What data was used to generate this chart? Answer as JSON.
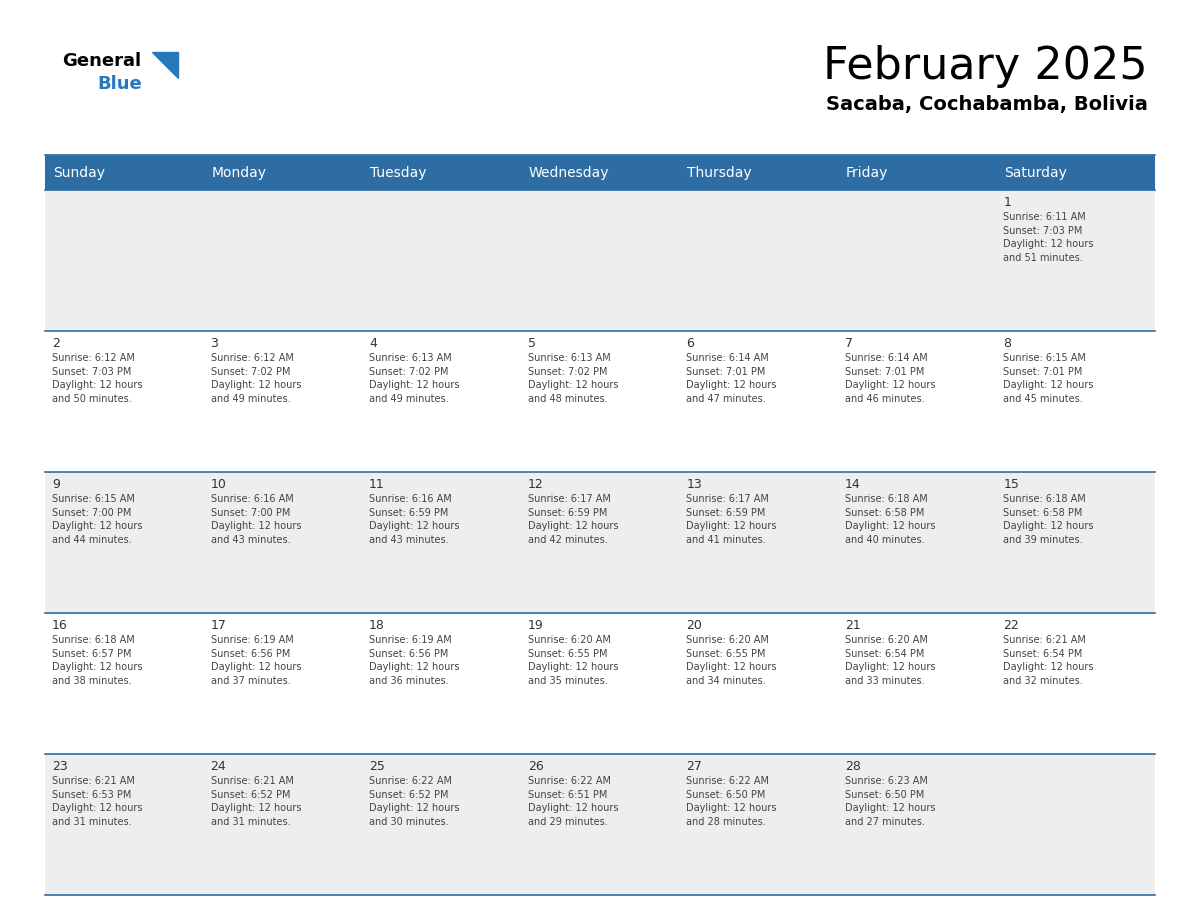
{
  "title": "February 2025",
  "subtitle": "Sacaba, Cochabamba, Bolivia",
  "header_bg_color": "#2E6DA4",
  "header_text_color": "#FFFFFF",
  "cell_bg_light": "#EEEEEE",
  "cell_bg_white": "#FFFFFF",
  "cell_text_color": "#444444",
  "day_number_color": "#333333",
  "border_color": "#2E6DA4",
  "days_of_week": [
    "Sunday",
    "Monday",
    "Tuesday",
    "Wednesday",
    "Thursday",
    "Friday",
    "Saturday"
  ],
  "calendar_data": [
    [
      null,
      null,
      null,
      null,
      null,
      null,
      {
        "day": "1",
        "sunrise": "6:11 AM",
        "sunset": "7:03 PM",
        "daylight": "12 hours\nand 51 minutes."
      }
    ],
    [
      {
        "day": "2",
        "sunrise": "6:12 AM",
        "sunset": "7:03 PM",
        "daylight": "12 hours\nand 50 minutes."
      },
      {
        "day": "3",
        "sunrise": "6:12 AM",
        "sunset": "7:02 PM",
        "daylight": "12 hours\nand 49 minutes."
      },
      {
        "day": "4",
        "sunrise": "6:13 AM",
        "sunset": "7:02 PM",
        "daylight": "12 hours\nand 49 minutes."
      },
      {
        "day": "5",
        "sunrise": "6:13 AM",
        "sunset": "7:02 PM",
        "daylight": "12 hours\nand 48 minutes."
      },
      {
        "day": "6",
        "sunrise": "6:14 AM",
        "sunset": "7:01 PM",
        "daylight": "12 hours\nand 47 minutes."
      },
      {
        "day": "7",
        "sunrise": "6:14 AM",
        "sunset": "7:01 PM",
        "daylight": "12 hours\nand 46 minutes."
      },
      {
        "day": "8",
        "sunrise": "6:15 AM",
        "sunset": "7:01 PM",
        "daylight": "12 hours\nand 45 minutes."
      }
    ],
    [
      {
        "day": "9",
        "sunrise": "6:15 AM",
        "sunset": "7:00 PM",
        "daylight": "12 hours\nand 44 minutes."
      },
      {
        "day": "10",
        "sunrise": "6:16 AM",
        "sunset": "7:00 PM",
        "daylight": "12 hours\nand 43 minutes."
      },
      {
        "day": "11",
        "sunrise": "6:16 AM",
        "sunset": "6:59 PM",
        "daylight": "12 hours\nand 43 minutes."
      },
      {
        "day": "12",
        "sunrise": "6:17 AM",
        "sunset": "6:59 PM",
        "daylight": "12 hours\nand 42 minutes."
      },
      {
        "day": "13",
        "sunrise": "6:17 AM",
        "sunset": "6:59 PM",
        "daylight": "12 hours\nand 41 minutes."
      },
      {
        "day": "14",
        "sunrise": "6:18 AM",
        "sunset": "6:58 PM",
        "daylight": "12 hours\nand 40 minutes."
      },
      {
        "day": "15",
        "sunrise": "6:18 AM",
        "sunset": "6:58 PM",
        "daylight": "12 hours\nand 39 minutes."
      }
    ],
    [
      {
        "day": "16",
        "sunrise": "6:18 AM",
        "sunset": "6:57 PM",
        "daylight": "12 hours\nand 38 minutes."
      },
      {
        "day": "17",
        "sunrise": "6:19 AM",
        "sunset": "6:56 PM",
        "daylight": "12 hours\nand 37 minutes."
      },
      {
        "day": "18",
        "sunrise": "6:19 AM",
        "sunset": "6:56 PM",
        "daylight": "12 hours\nand 36 minutes."
      },
      {
        "day": "19",
        "sunrise": "6:20 AM",
        "sunset": "6:55 PM",
        "daylight": "12 hours\nand 35 minutes."
      },
      {
        "day": "20",
        "sunrise": "6:20 AM",
        "sunset": "6:55 PM",
        "daylight": "12 hours\nand 34 minutes."
      },
      {
        "day": "21",
        "sunrise": "6:20 AM",
        "sunset": "6:54 PM",
        "daylight": "12 hours\nand 33 minutes."
      },
      {
        "day": "22",
        "sunrise": "6:21 AM",
        "sunset": "6:54 PM",
        "daylight": "12 hours\nand 32 minutes."
      }
    ],
    [
      {
        "day": "23",
        "sunrise": "6:21 AM",
        "sunset": "6:53 PM",
        "daylight": "12 hours\nand 31 minutes."
      },
      {
        "day": "24",
        "sunrise": "6:21 AM",
        "sunset": "6:52 PM",
        "daylight": "12 hours\nand 31 minutes."
      },
      {
        "day": "25",
        "sunrise": "6:22 AM",
        "sunset": "6:52 PM",
        "daylight": "12 hours\nand 30 minutes."
      },
      {
        "day": "26",
        "sunrise": "6:22 AM",
        "sunset": "6:51 PM",
        "daylight": "12 hours\nand 29 minutes."
      },
      {
        "day": "27",
        "sunrise": "6:22 AM",
        "sunset": "6:50 PM",
        "daylight": "12 hours\nand 28 minutes."
      },
      {
        "day": "28",
        "sunrise": "6:23 AM",
        "sunset": "6:50 PM",
        "daylight": "12 hours\nand 27 minutes."
      },
      null
    ]
  ],
  "logo_blue_color": "#2878BE",
  "title_fontsize": 32,
  "subtitle_fontsize": 14,
  "header_fontsize": 10,
  "day_number_fontsize": 9,
  "cell_text_fontsize": 7
}
